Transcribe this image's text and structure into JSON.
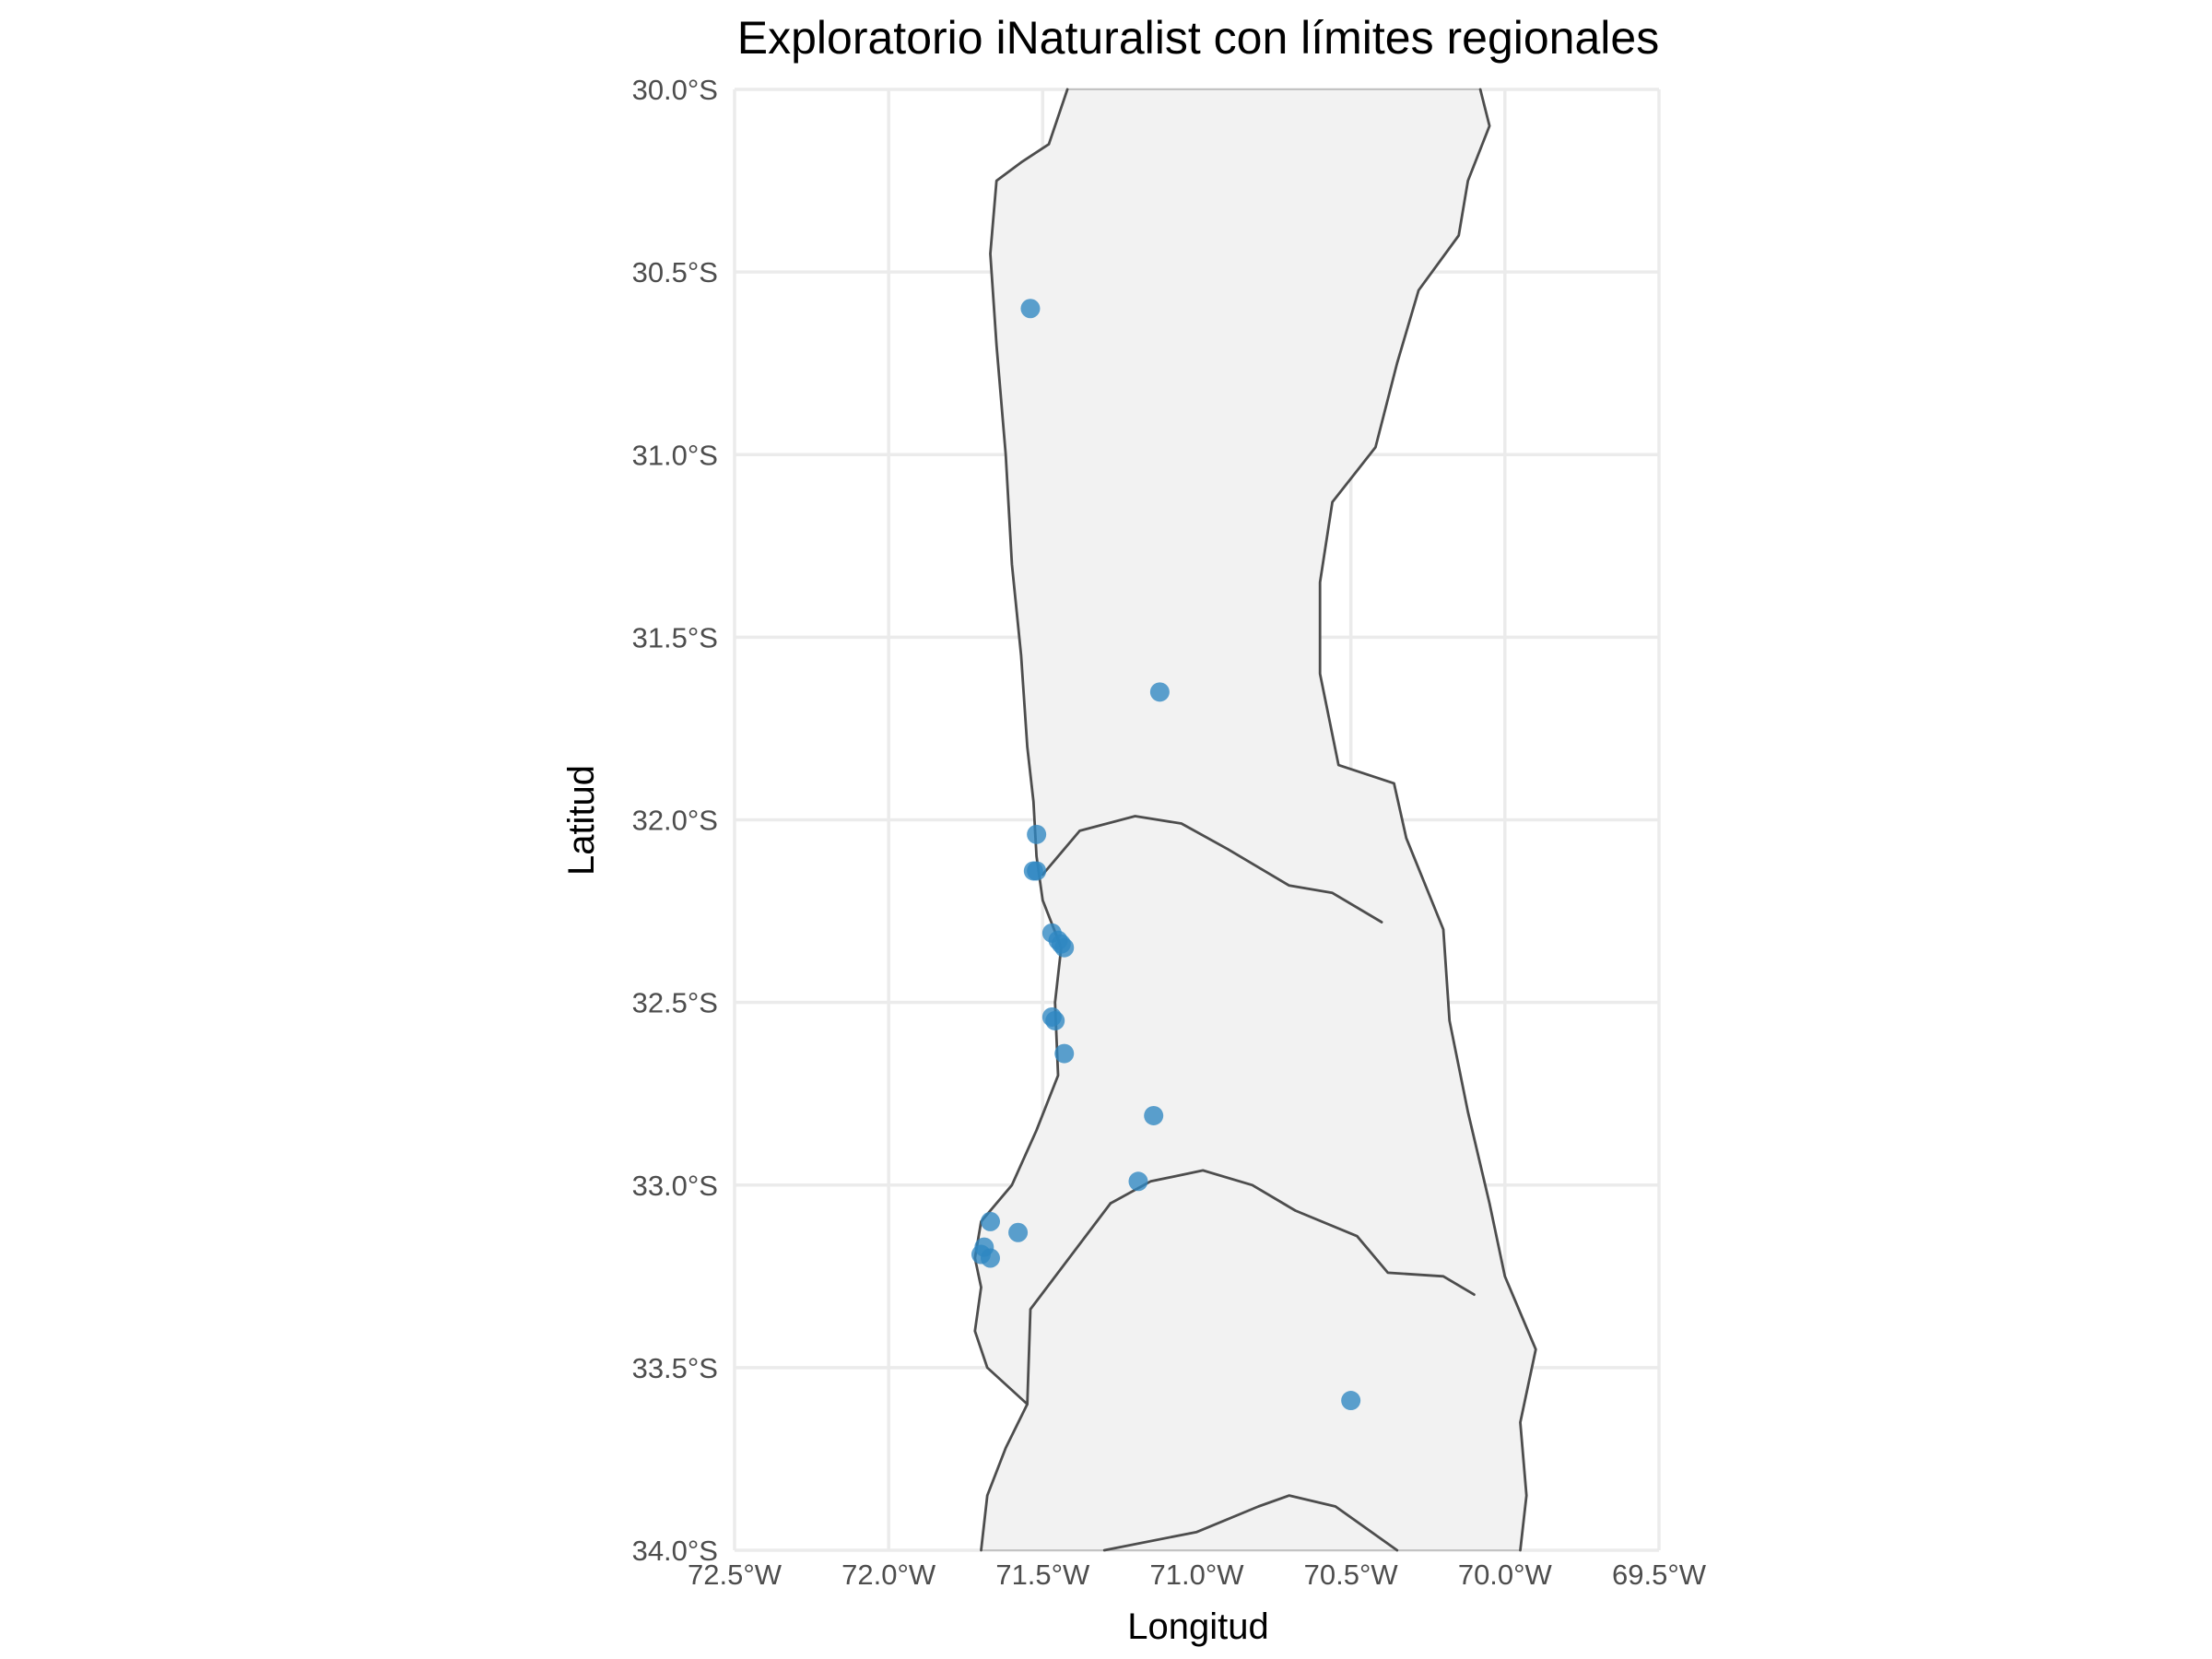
{
  "chart_data": {
    "type": "scatter",
    "title": "Exploratorio iNaturalist con límites regionales",
    "xlabel": "Longitud",
    "ylabel": "Latitud",
    "xlim": [
      -72.5,
      -69.5
    ],
    "ylim": [
      -34.0,
      -30.0
    ],
    "x_ticks": [
      -72.5,
      -72.0,
      -71.5,
      -71.0,
      -70.5,
      -70.0,
      -69.5
    ],
    "x_tick_labels": [
      "72.5°W",
      "72.0°W",
      "71.5°W",
      "71.0°W",
      "70.5°W",
      "70.0°W",
      "69.5°W"
    ],
    "y_ticks": [
      -30.0,
      -30.5,
      -31.0,
      -31.5,
      -32.0,
      -32.5,
      -33.0,
      -33.5,
      -34.0
    ],
    "y_tick_labels": [
      "30.0°S",
      "30.5°S",
      "31.0°S",
      "31.5°S",
      "32.0°S",
      "32.5°S",
      "33.0°S",
      "33.5°S",
      "34.0°S"
    ],
    "grid": true,
    "legend": false,
    "point_color": "#2e86c1",
    "land_color": "#f2f2f2",
    "boundary_color": "#4d4d4d",
    "series": [
      {
        "points": [
          {
            "lon": -71.54,
            "lat": -30.6
          },
          {
            "lon": -71.12,
            "lat": -31.65
          },
          {
            "lon": -71.52,
            "lat": -32.04
          },
          {
            "lon": -71.53,
            "lat": -32.14
          },
          {
            "lon": -71.52,
            "lat": -32.14
          },
          {
            "lon": -71.47,
            "lat": -32.31
          },
          {
            "lon": -71.45,
            "lat": -32.33
          },
          {
            "lon": -71.44,
            "lat": -32.34
          },
          {
            "lon": -71.43,
            "lat": -32.35
          },
          {
            "lon": -71.47,
            "lat": -32.54
          },
          {
            "lon": -71.46,
            "lat": -32.55
          },
          {
            "lon": -71.43,
            "lat": -32.64
          },
          {
            "lon": -71.14,
            "lat": -32.81
          },
          {
            "lon": -71.19,
            "lat": -32.99
          },
          {
            "lon": -71.67,
            "lat": -33.1
          },
          {
            "lon": -71.58,
            "lat": -33.13
          },
          {
            "lon": -71.69,
            "lat": -33.17
          },
          {
            "lon": -71.7,
            "lat": -33.19
          },
          {
            "lon": -71.67,
            "lat": -33.2
          },
          {
            "lon": -70.5,
            "lat": -33.59
          }
        ]
      }
    ],
    "boundaries": {
      "land": [
        [
          -71.7,
          -34.0
        ],
        [
          -71.68,
          -33.85
        ],
        [
          -71.62,
          -33.72
        ],
        [
          -71.55,
          -33.6
        ],
        [
          -71.68,
          -33.5
        ],
        [
          -71.72,
          -33.4
        ],
        [
          -71.7,
          -33.28
        ],
        [
          -71.72,
          -33.2
        ],
        [
          -71.7,
          -33.1
        ],
        [
          -71.6,
          -33.0
        ],
        [
          -71.52,
          -32.85
        ],
        [
          -71.45,
          -32.7
        ],
        [
          -71.46,
          -32.5
        ],
        [
          -71.44,
          -32.35
        ],
        [
          -71.5,
          -32.22
        ],
        [
          -71.52,
          -32.1
        ],
        [
          -71.53,
          -31.95
        ],
        [
          -71.55,
          -31.8
        ],
        [
          -71.57,
          -31.55
        ],
        [
          -71.6,
          -31.3
        ],
        [
          -71.62,
          -31.0
        ],
        [
          -71.65,
          -30.7
        ],
        [
          -71.67,
          -30.45
        ],
        [
          -71.65,
          -30.25
        ],
        [
          -71.57,
          -30.2
        ],
        [
          -71.48,
          -30.15
        ],
        [
          -71.42,
          -30.0
        ],
        [
          -70.08,
          -30.0
        ],
        [
          -70.05,
          -30.1
        ],
        [
          -70.12,
          -30.25
        ],
        [
          -70.15,
          -30.4
        ],
        [
          -70.28,
          -30.55
        ],
        [
          -70.35,
          -30.75
        ],
        [
          -70.42,
          -30.98
        ],
        [
          -70.56,
          -31.13
        ],
        [
          -70.6,
          -31.35
        ],
        [
          -70.6,
          -31.6
        ],
        [
          -70.54,
          -31.85
        ],
        [
          -70.36,
          -31.9
        ],
        [
          -70.32,
          -32.05
        ],
        [
          -70.2,
          -32.3
        ],
        [
          -70.18,
          -32.55
        ],
        [
          -70.12,
          -32.8
        ],
        [
          -70.05,
          -33.05
        ],
        [
          -70.0,
          -33.25
        ],
        [
          -69.9,
          -33.45
        ],
        [
          -69.95,
          -33.65
        ],
        [
          -69.93,
          -33.85
        ],
        [
          -69.95,
          -34.0
        ]
      ],
      "lines": [
        [
          [
            -71.7,
            -34.0
          ],
          [
            -71.68,
            -33.85
          ],
          [
            -71.62,
            -33.72
          ],
          [
            -71.55,
            -33.6
          ],
          [
            -71.68,
            -33.5
          ],
          [
            -71.72,
            -33.4
          ],
          [
            -71.7,
            -33.28
          ],
          [
            -71.72,
            -33.2
          ],
          [
            -71.7,
            -33.1
          ],
          [
            -71.6,
            -33.0
          ],
          [
            -71.52,
            -32.85
          ],
          [
            -71.45,
            -32.7
          ],
          [
            -71.46,
            -32.5
          ],
          [
            -71.44,
            -32.35
          ],
          [
            -71.5,
            -32.22
          ],
          [
            -71.52,
            -32.1
          ],
          [
            -71.53,
            -31.95
          ],
          [
            -71.55,
            -31.8
          ],
          [
            -71.57,
            -31.55
          ],
          [
            -71.6,
            -31.3
          ],
          [
            -71.62,
            -31.0
          ],
          [
            -71.65,
            -30.7
          ],
          [
            -71.67,
            -30.45
          ],
          [
            -71.65,
            -30.25
          ],
          [
            -71.57,
            -30.2
          ],
          [
            -71.48,
            -30.15
          ],
          [
            -71.42,
            -30.0
          ]
        ],
        [
          [
            -70.08,
            -30.0
          ],
          [
            -70.05,
            -30.1
          ],
          [
            -70.12,
            -30.25
          ],
          [
            -70.15,
            -30.4
          ],
          [
            -70.28,
            -30.55
          ],
          [
            -70.35,
            -30.75
          ],
          [
            -70.42,
            -30.98
          ],
          [
            -70.56,
            -31.13
          ],
          [
            -70.6,
            -31.35
          ],
          [
            -70.6,
            -31.6
          ],
          [
            -70.54,
            -31.85
          ],
          [
            -70.36,
            -31.9
          ],
          [
            -70.32,
            -32.05
          ],
          [
            -70.2,
            -32.3
          ],
          [
            -70.18,
            -32.55
          ],
          [
            -70.12,
            -32.8
          ],
          [
            -70.05,
            -33.05
          ],
          [
            -70.0,
            -33.25
          ],
          [
            -69.9,
            -33.45
          ],
          [
            -69.95,
            -33.65
          ],
          [
            -69.93,
            -33.85
          ],
          [
            -69.95,
            -34.0
          ]
        ],
        [
          [
            -71.5,
            -32.15
          ],
          [
            -71.38,
            -32.03
          ],
          [
            -71.2,
            -31.99
          ],
          [
            -71.05,
            -32.01
          ],
          [
            -70.9,
            -32.08
          ],
          [
            -70.7,
            -32.18
          ],
          [
            -70.56,
            -32.2
          ],
          [
            -70.4,
            -32.28
          ]
        ],
        [
          [
            -71.28,
            -33.05
          ],
          [
            -71.15,
            -32.99
          ],
          [
            -70.98,
            -32.96
          ],
          [
            -70.82,
            -33.0
          ],
          [
            -70.68,
            -33.07
          ],
          [
            -70.48,
            -33.14
          ],
          [
            -70.38,
            -33.24
          ],
          [
            -70.2,
            -33.25
          ],
          [
            -70.1,
            -33.3
          ]
        ],
        [
          [
            -71.28,
            -33.05
          ],
          [
            -71.54,
            -33.34
          ],
          [
            -71.55,
            -33.6
          ]
        ],
        [
          [
            -71.3,
            -34.0
          ],
          [
            -71.0,
            -33.95
          ],
          [
            -70.8,
            -33.88
          ],
          [
            -70.7,
            -33.85
          ],
          [
            -70.55,
            -33.88
          ],
          [
            -70.4,
            -33.97
          ],
          [
            -70.35,
            -34.0
          ]
        ]
      ]
    }
  }
}
